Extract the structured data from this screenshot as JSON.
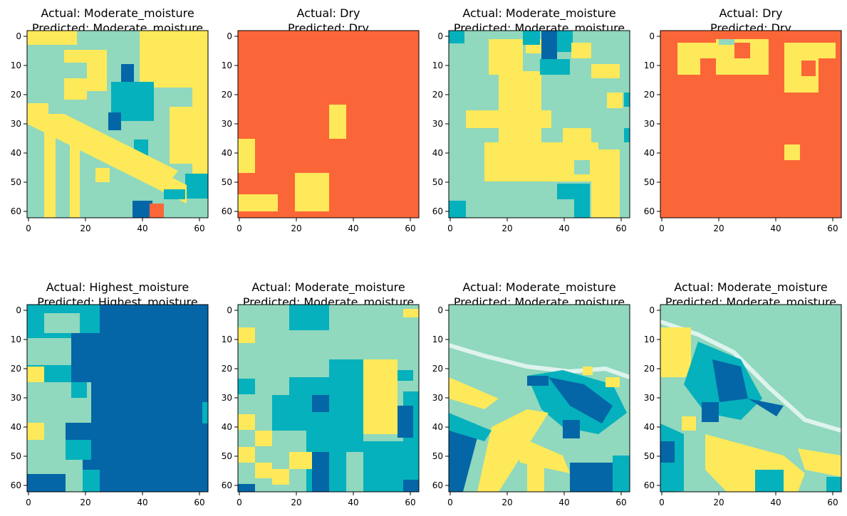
{
  "figure": {
    "colors": {
      "dry": "#fb6639",
      "light_yellow": "#fde95a",
      "mint": "#90d8be",
      "teal": "#05b1bc",
      "deep_blue": "#0466a6",
      "foam": "#dff3ee"
    },
    "axes": {
      "xticks": [
        "0",
        "20",
        "40",
        "60"
      ],
      "yticks": [
        "0",
        "10",
        "20",
        "30",
        "40",
        "50",
        "60"
      ]
    }
  },
  "chart_data": [
    {
      "type": "heatmap",
      "title_line1": "Actual: Moderate_moisture",
      "title_line2": "Predicted: Moderate_moisture",
      "actual": "Moderate_moisture",
      "predicted": "Moderate_moisture",
      "xlim": [
        0,
        63
      ],
      "ylim": [
        63,
        0
      ],
      "image_size": [
        64,
        64
      ]
    },
    {
      "type": "heatmap",
      "title_line1": "Actual: Dry",
      "title_line2": "Predicted: Dry",
      "actual": "Dry",
      "predicted": "Dry",
      "xlim": [
        0,
        63
      ],
      "ylim": [
        63,
        0
      ],
      "image_size": [
        64,
        64
      ]
    },
    {
      "type": "heatmap",
      "title_line1": "Actual: Moderate_moisture",
      "title_line2": "Predicted: Moderate_moisture",
      "actual": "Moderate_moisture",
      "predicted": "Moderate_moisture",
      "xlim": [
        0,
        63
      ],
      "ylim": [
        63,
        0
      ],
      "image_size": [
        64,
        64
      ]
    },
    {
      "type": "heatmap",
      "title_line1": "Actual: Dry",
      "title_line2": "Predicted: Dry",
      "actual": "Dry",
      "predicted": "Dry",
      "xlim": [
        0,
        63
      ],
      "ylim": [
        63,
        0
      ],
      "image_size": [
        64,
        64
      ]
    },
    {
      "type": "heatmap",
      "title_line1": "Actual: Highest_moisture",
      "title_line2": "Predicted: Highest_moisture",
      "actual": "Highest_moisture",
      "predicted": "Highest_moisture",
      "xlim": [
        0,
        63
      ],
      "ylim": [
        63,
        0
      ],
      "image_size": [
        64,
        64
      ]
    },
    {
      "type": "heatmap",
      "title_line1": "Actual: Moderate_moisture",
      "title_line2": "Predicted: Moderate_moisture",
      "actual": "Moderate_moisture",
      "predicted": "Moderate_moisture",
      "xlim": [
        0,
        63
      ],
      "ylim": [
        63,
        0
      ],
      "image_size": [
        64,
        64
      ]
    },
    {
      "type": "heatmap",
      "title_line1": "Actual: Moderate_moisture",
      "title_line2": "Predicted: Moderate_moisture",
      "actual": "Moderate_moisture",
      "predicted": "Moderate_moisture",
      "xlim": [
        0,
        63
      ],
      "ylim": [
        63,
        0
      ],
      "image_size": [
        64,
        64
      ]
    },
    {
      "type": "heatmap",
      "title_line1": "Actual: Moderate_moisture",
      "title_line2": "Predicted: Moderate_moisture",
      "actual": "Moderate_moisture",
      "predicted": "Moderate_moisture",
      "xlim": [
        0,
        63
      ],
      "ylim": [
        63,
        0
      ],
      "image_size": [
        64,
        64
      ]
    }
  ]
}
